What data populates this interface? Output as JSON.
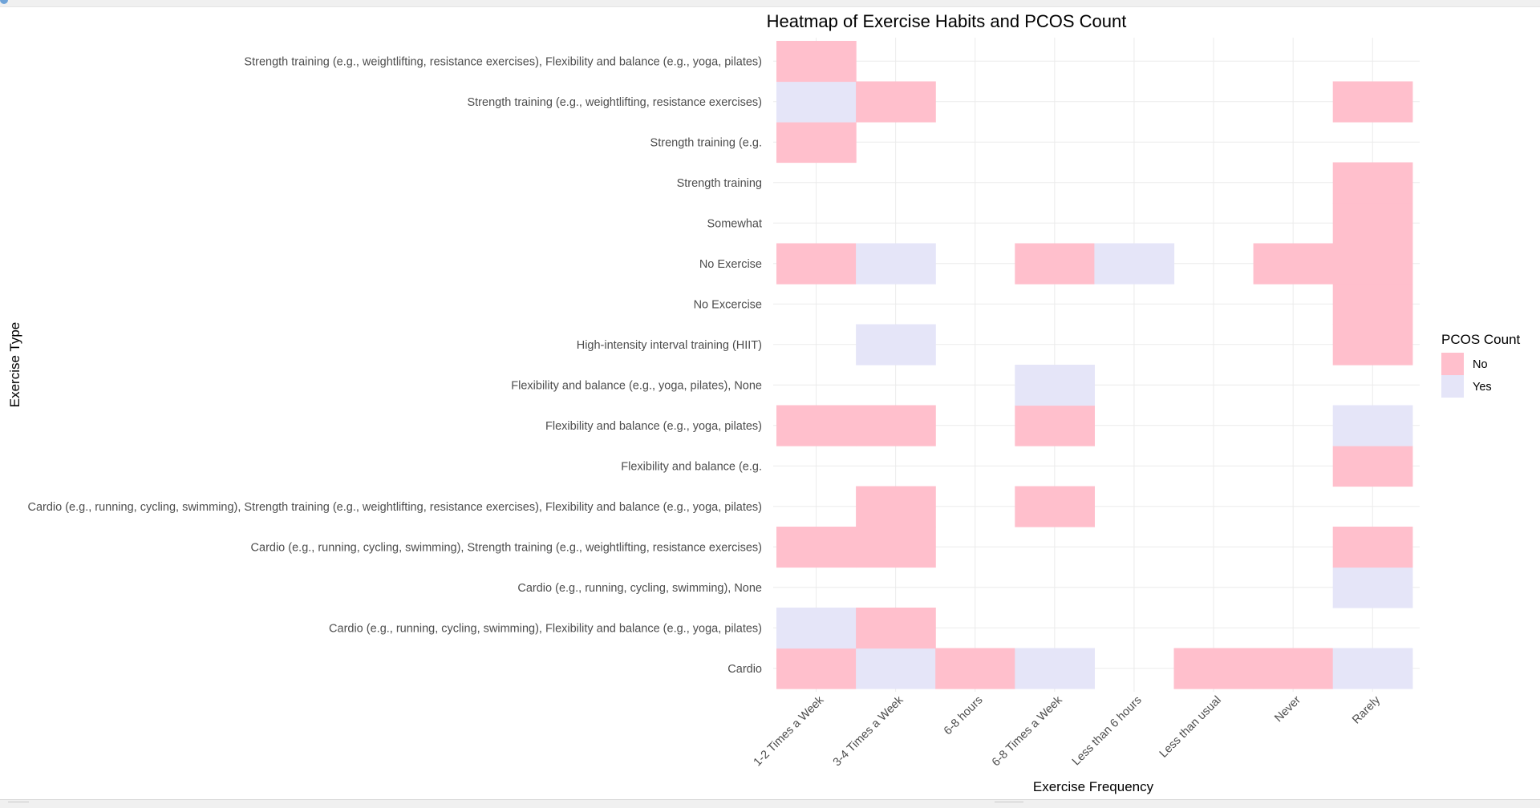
{
  "chart_data": {
    "type": "heatmap",
    "title": "Heatmap of Exercise Habits and PCOS Count",
    "xlabel": "Exercise Frequency",
    "ylabel": "Exercise Type",
    "x_categories": [
      "1-2 Times a Week",
      "3-4 Times a Week",
      "6-8 hours",
      "6-8 Times a Week",
      "Less than 6 hours",
      "Less than usual",
      "Never",
      "Rarely"
    ],
    "y_categories": [
      "Cardio",
      "Cardio (e.g., running, cycling, swimming), Flexibility and balance (e.g., yoga, pilates)",
      "Cardio (e.g., running, cycling, swimming), None",
      "Cardio (e.g., running, cycling, swimming), Strength training (e.g., weightlifting, resistance exercises)",
      "Cardio (e.g., running, cycling, swimming), Strength training (e.g., weightlifting, resistance exercises), Flexibility and balance (e.g., yoga, pilates)",
      "Flexibility and balance (e.g.",
      "Flexibility and balance (e.g., yoga, pilates)",
      "Flexibility and balance (e.g., yoga, pilates), None",
      "High-intensity interval training (HIIT)",
      "No Excercise",
      "No Exercise",
      "Somewhat",
      "Strength training",
      "Strength training (e.g.",
      "Strength training (e.g., weightlifting, resistance exercises)",
      "Strength training (e.g., weightlifting, resistance exercises), Flexibility and balance (e.g., yoga, pilates)"
    ],
    "cells": [
      {
        "x": "1-2 Times a Week",
        "y": "Cardio",
        "value": "No"
      },
      {
        "x": "3-4 Times a Week",
        "y": "Cardio",
        "value": "Yes"
      },
      {
        "x": "6-8 hours",
        "y": "Cardio",
        "value": "No"
      },
      {
        "x": "6-8 Times a Week",
        "y": "Cardio",
        "value": "Yes"
      },
      {
        "x": "Less than usual",
        "y": "Cardio",
        "value": "No"
      },
      {
        "x": "Never",
        "y": "Cardio",
        "value": "No"
      },
      {
        "x": "Rarely",
        "y": "Cardio",
        "value": "Yes"
      },
      {
        "x": "1-2 Times a Week",
        "y": "Cardio (e.g., running, cycling, swimming), Flexibility and balance (e.g., yoga, pilates)",
        "value": "Yes"
      },
      {
        "x": "3-4 Times a Week",
        "y": "Cardio (e.g., running, cycling, swimming), Flexibility and balance (e.g., yoga, pilates)",
        "value": "No"
      },
      {
        "x": "Rarely",
        "y": "Cardio (e.g., running, cycling, swimming), None",
        "value": "Yes"
      },
      {
        "x": "1-2 Times a Week",
        "y": "Cardio (e.g., running, cycling, swimming), Strength training (e.g., weightlifting, resistance exercises)",
        "value": "No"
      },
      {
        "x": "3-4 Times a Week",
        "y": "Cardio (e.g., running, cycling, swimming), Strength training (e.g., weightlifting, resistance exercises)",
        "value": "No"
      },
      {
        "x": "Rarely",
        "y": "Cardio (e.g., running, cycling, swimming), Strength training (e.g., weightlifting, resistance exercises)",
        "value": "No"
      },
      {
        "x": "3-4 Times a Week",
        "y": "Cardio (e.g., running, cycling, swimming), Strength training (e.g., weightlifting, resistance exercises), Flexibility and balance (e.g., yoga, pilates)",
        "value": "No"
      },
      {
        "x": "6-8 Times a Week",
        "y": "Cardio (e.g., running, cycling, swimming), Strength training (e.g., weightlifting, resistance exercises), Flexibility and balance (e.g., yoga, pilates)",
        "value": "No"
      },
      {
        "x": "Rarely",
        "y": "Flexibility and balance (e.g.",
        "value": "No"
      },
      {
        "x": "1-2 Times a Week",
        "y": "Flexibility and balance (e.g., yoga, pilates)",
        "value": "No"
      },
      {
        "x": "3-4 Times a Week",
        "y": "Flexibility and balance (e.g., yoga, pilates)",
        "value": "No"
      },
      {
        "x": "6-8 Times a Week",
        "y": "Flexibility and balance (e.g., yoga, pilates)",
        "value": "No"
      },
      {
        "x": "Rarely",
        "y": "Flexibility and balance (e.g., yoga, pilates)",
        "value": "Yes"
      },
      {
        "x": "6-8 Times a Week",
        "y": "Flexibility and balance (e.g., yoga, pilates), None",
        "value": "Yes"
      },
      {
        "x": "3-4 Times a Week",
        "y": "High-intensity interval training (HIIT)",
        "value": "Yes"
      },
      {
        "x": "Rarely",
        "y": "High-intensity interval training (HIIT)",
        "value": "No"
      },
      {
        "x": "Rarely",
        "y": "No Excercise",
        "value": "No"
      },
      {
        "x": "1-2 Times a Week",
        "y": "No Exercise",
        "value": "No"
      },
      {
        "x": "3-4 Times a Week",
        "y": "No Exercise",
        "value": "Yes"
      },
      {
        "x": "6-8 Times a Week",
        "y": "No Exercise",
        "value": "No"
      },
      {
        "x": "Less than 6 hours",
        "y": "No Exercise",
        "value": "Yes"
      },
      {
        "x": "Never",
        "y": "No Exercise",
        "value": "No"
      },
      {
        "x": "Rarely",
        "y": "No Exercise",
        "value": "No"
      },
      {
        "x": "Rarely",
        "y": "Somewhat",
        "value": "No"
      },
      {
        "x": "Rarely",
        "y": "Strength training",
        "value": "No"
      },
      {
        "x": "1-2 Times a Week",
        "y": "Strength training (e.g.",
        "value": "No"
      },
      {
        "x": "1-2 Times a Week",
        "y": "Strength training (e.g., weightlifting, resistance exercises)",
        "value": "Yes"
      },
      {
        "x": "3-4 Times a Week",
        "y": "Strength training (e.g., weightlifting, resistance exercises)",
        "value": "No"
      },
      {
        "x": "Rarely",
        "y": "Strength training (e.g., weightlifting, resistance exercises)",
        "value": "No"
      },
      {
        "x": "1-2 Times a Week",
        "y": "Strength training (e.g., weightlifting, resistance exercises), Flexibility and balance (e.g., yoga, pilates)",
        "value": "No"
      }
    ],
    "legend": {
      "title": "PCOS Count",
      "position": "right",
      "entries": [
        {
          "label": "No",
          "color": "#ffbfcc"
        },
        {
          "label": "Yes",
          "color": "#e5e5f8"
        }
      ]
    },
    "grid": true
  }
}
